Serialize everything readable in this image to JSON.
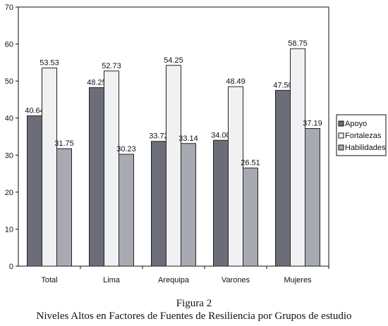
{
  "figure": {
    "number": "Figura 2",
    "caption": "Niveles Altos en Factores de Fuentes de Resiliencia por Grupos de estudio"
  },
  "chart_data": {
    "type": "bar",
    "categories": [
      "Total",
      "Lima",
      "Arequipa",
      "Varones",
      "Mujeres"
    ],
    "series": [
      {
        "name": "Apoyo",
        "values": [
          40.64,
          48.25,
          33.72,
          34.0,
          47.5
        ],
        "labels": [
          "40.64",
          "48.25",
          "33.72",
          "34.00",
          "47.50"
        ],
        "color": "#6b6e78"
      },
      {
        "name": "Fortalezas",
        "values": [
          53.53,
          52.73,
          54.25,
          48.49,
          58.75
        ],
        "labels": [
          "53.53",
          "52.73",
          "54.25",
          "48.49",
          "58.75"
        ],
        "color": "#f1f1f4"
      },
      {
        "name": "Habilidades",
        "values": [
          31.75,
          30.23,
          33.14,
          26.51,
          37.19
        ],
        "labels": [
          "31.75",
          "30.23",
          "33.14",
          "26.51",
          "37.19"
        ],
        "color": "#a7aab1"
      }
    ],
    "ylim": [
      0,
      70
    ],
    "yticks": [
      0,
      10,
      20,
      30,
      40,
      50,
      60,
      70
    ],
    "xlabel": "",
    "ylabel": "",
    "legend_position": "right",
    "grid": false
  }
}
